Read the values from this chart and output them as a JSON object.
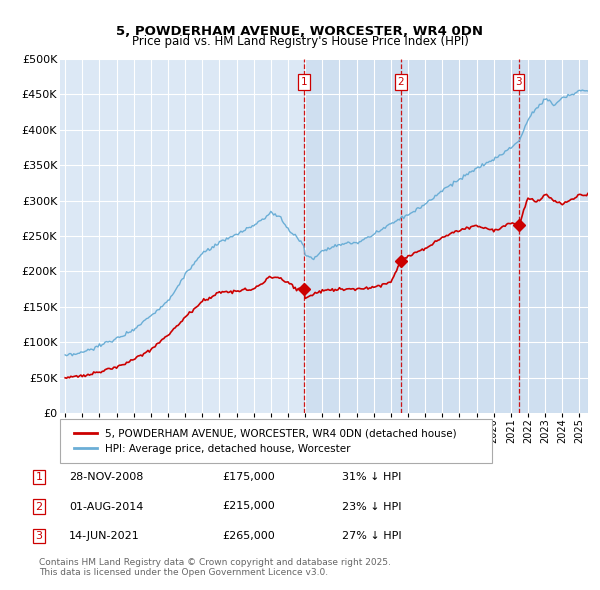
{
  "title": "5, POWDERHAM AVENUE, WORCESTER, WR4 0DN",
  "subtitle": "Price paid vs. HM Land Registry's House Price Index (HPI)",
  "ylim": [
    0,
    500000
  ],
  "yticks": [
    0,
    50000,
    100000,
    150000,
    200000,
    250000,
    300000,
    350000,
    400000,
    450000,
    500000
  ],
  "ytick_labels": [
    "£0",
    "£50K",
    "£100K",
    "£150K",
    "£200K",
    "£250K",
    "£300K",
    "£350K",
    "£400K",
    "£450K",
    "£500K"
  ],
  "xlim_start": 1994.7,
  "xlim_end": 2025.5,
  "xtick_years": [
    1995,
    1996,
    1997,
    1998,
    1999,
    2000,
    2001,
    2002,
    2003,
    2004,
    2005,
    2006,
    2007,
    2008,
    2009,
    2010,
    2011,
    2012,
    2013,
    2014,
    2015,
    2016,
    2017,
    2018,
    2019,
    2020,
    2021,
    2022,
    2023,
    2024,
    2025
  ],
  "hpi_color": "#6baed6",
  "price_color": "#cc0000",
  "vline_color": "#cc0000",
  "background_plot": "#dce8f5",
  "shade_color": "#c8ddf0",
  "grid_color": "#ffffff",
  "sale_points": [
    {
      "label": "1",
      "year": 2008.92,
      "price": 175000,
      "date_str": "28-NOV-2008",
      "pct": "31%",
      "direction": "↓"
    },
    {
      "label": "2",
      "year": 2014.58,
      "price": 215000,
      "date_str": "01-AUG-2014",
      "pct": "23%",
      "direction": "↓"
    },
    {
      "label": "3",
      "year": 2021.45,
      "price": 265000,
      "date_str": "14-JUN-2021",
      "pct": "27%",
      "direction": "↓"
    }
  ],
  "legend_line1": "5, POWDERHAM AVENUE, WORCESTER, WR4 0DN (detached house)",
  "legend_line2": "HPI: Average price, detached house, Worcester",
  "footer": "Contains HM Land Registry data © Crown copyright and database right 2025.\nThis data is licensed under the Open Government Licence v3.0.",
  "table_rows": [
    {
      "num": "1",
      "date": "28-NOV-2008",
      "price": "£175,000",
      "pct": "31% ↓ HPI"
    },
    {
      "num": "2",
      "date": "01-AUG-2014",
      "price": "£215,000",
      "pct": "23% ↓ HPI"
    },
    {
      "num": "3",
      "date": "14-JUN-2021",
      "price": "£265,000",
      "pct": "27% ↓ HPI"
    }
  ],
  "hpi_anchors_x": [
    1995,
    1996,
    1997,
    1998,
    1999,
    2000,
    2001,
    2002,
    2003,
    2004,
    2005,
    2006,
    2007,
    2007.5,
    2008,
    2008.92,
    2009,
    2009.5,
    2010,
    2011,
    2012,
    2013,
    2014,
    2015,
    2016,
    2017,
    2018,
    2019,
    2020,
    2021,
    2021.5,
    2022,
    2023,
    2023.5,
    2024,
    2025
  ],
  "hpi_anchors_y": [
    80000,
    85000,
    95000,
    105000,
    118000,
    138000,
    158000,
    195000,
    225000,
    240000,
    252000,
    265000,
    282000,
    278000,
    260000,
    238000,
    222000,
    218000,
    230000,
    238000,
    240000,
    252000,
    268000,
    280000,
    295000,
    315000,
    330000,
    345000,
    358000,
    375000,
    385000,
    415000,
    445000,
    435000,
    445000,
    455000
  ],
  "price_anchors_x": [
    1995,
    1996,
    1997,
    1998,
    1999,
    2000,
    2001,
    2002,
    2003,
    2004,
    2005,
    2006,
    2007,
    2007.5,
    2008,
    2008.5,
    2008.92,
    2009,
    2009.5,
    2010,
    2011,
    2012,
    2013,
    2014,
    2014.58,
    2015,
    2016,
    2017,
    2018,
    2019,
    2020,
    2021,
    2021.45,
    2021.8,
    2022,
    2022.5,
    2023,
    2023.5,
    2024,
    2025
  ],
  "price_anchors_y": [
    50000,
    53000,
    58000,
    65000,
    75000,
    90000,
    110000,
    135000,
    158000,
    170000,
    172000,
    175000,
    193000,
    190000,
    185000,
    175000,
    175000,
    162000,
    168000,
    173000,
    175000,
    175000,
    178000,
    185000,
    215000,
    222000,
    232000,
    248000,
    258000,
    265000,
    258000,
    268000,
    265000,
    288000,
    305000,
    298000,
    308000,
    300000,
    295000,
    308000
  ]
}
